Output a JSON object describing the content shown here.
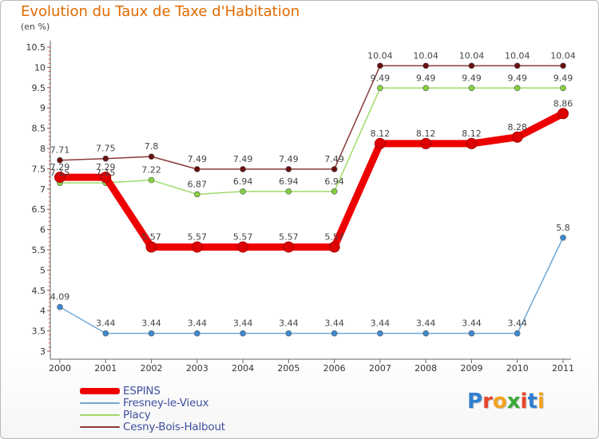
{
  "header": {
    "title": "Evolution du Taux de Taxe d'Habitation",
    "subtitle": "(en %)"
  },
  "logo": {
    "text": "Proxiti"
  },
  "chart_data": {
    "type": "line",
    "title": "Evolution du Taux de Taxe d'Habitation",
    "subtitle": "(en %)",
    "xlabel": "",
    "ylabel": "",
    "categories": [
      "2000",
      "2001",
      "2002",
      "2003",
      "2004",
      "2005",
      "2006",
      "2007",
      "2008",
      "2009",
      "2010",
      "2011"
    ],
    "y_ticks": [
      "3",
      "3.5",
      "4",
      "4.5",
      "5",
      "5.5",
      "6",
      "6.5",
      "7",
      "7.5",
      "8",
      "8.5",
      "9",
      "9.5",
      "10",
      "10.5"
    ],
    "ylim": [
      3,
      10.5
    ],
    "grid": false,
    "legend_position": "bottom-left",
    "series": [
      {
        "name": "ESPINS",
        "color": "#ee0000",
        "point_color": "#dd0000",
        "values": [
          7.29,
          7.29,
          5.57,
          5.57,
          5.57,
          5.57,
          5.57,
          8.12,
          8.12,
          8.12,
          8.28,
          8.86
        ],
        "labels": [
          "7.29",
          "7.29",
          "5.57",
          "5.57",
          "5.57",
          "5.57",
          "5.57",
          "8.12",
          "8.12",
          "8.12",
          "8.28",
          "8.86"
        ]
      },
      {
        "name": "Fresney-le-Vieux",
        "color": "#6fa8d6",
        "point_color": "#3d8ad0",
        "values": [
          4.09,
          3.44,
          3.44,
          3.44,
          3.44,
          3.44,
          3.44,
          3.44,
          3.44,
          3.44,
          3.44,
          5.8
        ],
        "labels": [
          "4.09",
          "3.44",
          "3.44",
          "3.44",
          "3.44",
          "3.44",
          "3.44",
          "3.44",
          "3.44",
          "3.44",
          "3.44",
          "5.8"
        ]
      },
      {
        "name": "Placy",
        "color": "#9fdc6a",
        "point_color": "#84d140",
        "values": [
          7.15,
          7.15,
          7.22,
          6.87,
          6.94,
          6.94,
          6.94,
          9.49,
          9.49,
          9.49,
          9.49,
          9.49
        ],
        "labels": [
          "7.15",
          "7.15",
          "7.22",
          "6.87",
          "6.94",
          "6.94",
          "6.94",
          "9.49",
          "9.49",
          "9.49",
          "9.49",
          "9.49"
        ]
      },
      {
        "name": "Cesny-Bois-Halbout",
        "color": "#8a3a3a",
        "point_color": "#6a1010",
        "values": [
          7.71,
          7.75,
          7.8,
          7.49,
          7.49,
          7.49,
          7.49,
          10.04,
          10.04,
          10.04,
          10.04,
          10.04
        ],
        "labels": [
          "7.71",
          "7.75",
          "7.8",
          "7.49",
          "7.49",
          "7.49",
          "7.49",
          "10.04",
          "10.04",
          "10.04",
          "10.04",
          "10.04"
        ]
      }
    ]
  }
}
